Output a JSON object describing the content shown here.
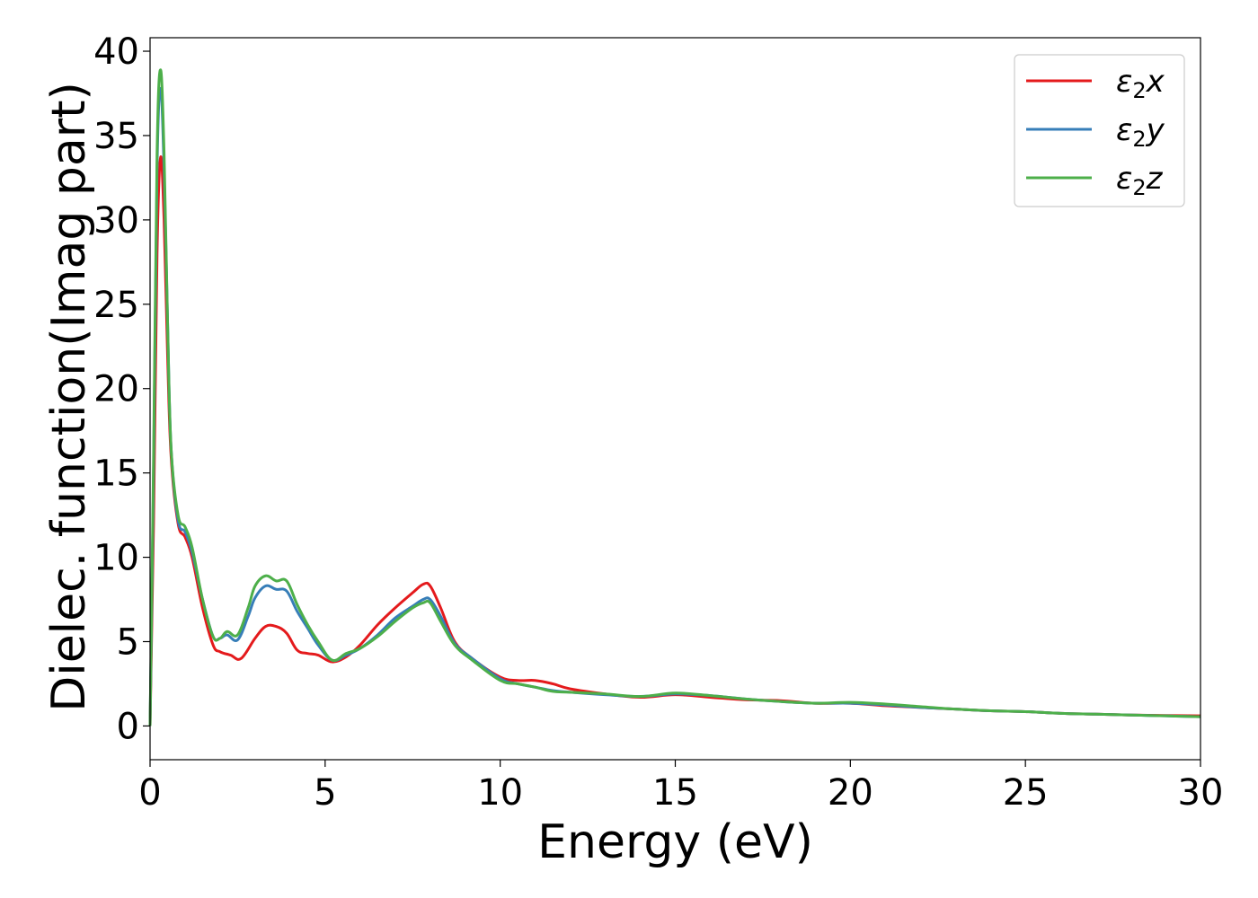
{
  "chart_data": {
    "type": "line",
    "xlabel": "Energy (eV)",
    "ylabel": "Dielec. function(Imag part)",
    "xlim": [
      0,
      30
    ],
    "ylim": [
      -2,
      40.8
    ],
    "xticks": [
      0,
      5,
      10,
      15,
      20,
      25,
      30
    ],
    "yticks": [
      0,
      5,
      10,
      15,
      20,
      25,
      30,
      35,
      40
    ],
    "grid": false,
    "legend_position": "top-right",
    "series": [
      {
        "name": "ε2x",
        "legend_base": "ε",
        "legend_sub": "2",
        "legend_suffix": "x",
        "color": "#e41a1c",
        "x": [
          0,
          0.1,
          0.2,
          0.3,
          0.4,
          0.5,
          0.6,
          0.8,
          1.0,
          1.2,
          1.5,
          1.8,
          2.0,
          2.3,
          2.6,
          3.0,
          3.3,
          3.6,
          3.9,
          4.2,
          4.5,
          4.8,
          5.2,
          5.6,
          6.0,
          6.5,
          7.0,
          7.5,
          7.8,
          8.0,
          8.3,
          8.7,
          9.2,
          10.0,
          10.5,
          11.0,
          11.5,
          12.0,
          13.0,
          14.0,
          15.0,
          16.0,
          17.0,
          18.0,
          19.0,
          20.0,
          21.0,
          22.0,
          23.0,
          24.0,
          25.0,
          26.0,
          27.0,
          28.0,
          29.0,
          30.0
        ],
        "y": [
          0,
          12,
          28,
          33.7,
          30,
          22,
          16,
          12,
          11.2,
          10,
          7,
          4.8,
          4.4,
          4.2,
          4.0,
          5.2,
          5.9,
          5.9,
          5.5,
          4.5,
          4.3,
          4.2,
          3.8,
          4.1,
          4.8,
          6.0,
          7.0,
          7.9,
          8.4,
          8.3,
          7.0,
          5.0,
          4.0,
          2.9,
          2.7,
          2.7,
          2.5,
          2.2,
          1.9,
          1.7,
          1.85,
          1.7,
          1.55,
          1.5,
          1.35,
          1.35,
          1.2,
          1.1,
          1.0,
          0.9,
          0.85,
          0.75,
          0.7,
          0.65,
          0.62,
          0.6
        ]
      },
      {
        "name": "ε2y",
        "legend_base": "ε",
        "legend_sub": "2",
        "legend_suffix": "y",
        "color": "#377eb8",
        "x": [
          0,
          0.1,
          0.2,
          0.3,
          0.4,
          0.5,
          0.6,
          0.8,
          1.0,
          1.2,
          1.5,
          1.8,
          2.0,
          2.2,
          2.5,
          2.8,
          3.0,
          3.3,
          3.6,
          3.9,
          4.2,
          4.5,
          4.8,
          5.2,
          5.6,
          6.0,
          6.5,
          7.0,
          7.5,
          7.8,
          8.0,
          8.3,
          8.7,
          9.2,
          10.0,
          10.5,
          11.0,
          11.5,
          12.0,
          13.0,
          14.0,
          15.0,
          16.0,
          17.0,
          18.0,
          19.0,
          20.0,
          21.0,
          22.0,
          23.0,
          24.0,
          25.0,
          26.0,
          27.0,
          28.0,
          29.0,
          30.0
        ],
        "y": [
          0,
          15,
          33,
          37.8,
          33,
          24,
          16.5,
          12.2,
          11.5,
          10.3,
          7.5,
          5.3,
          5.2,
          5.4,
          5.1,
          6.5,
          7.6,
          8.3,
          8.1,
          8.0,
          6.8,
          5.8,
          4.8,
          3.9,
          4.2,
          4.6,
          5.4,
          6.4,
          7.1,
          7.5,
          7.5,
          6.5,
          4.9,
          4.0,
          2.8,
          2.5,
          2.3,
          2.1,
          2.0,
          1.85,
          1.75,
          1.9,
          1.8,
          1.6,
          1.45,
          1.35,
          1.35,
          1.25,
          1.1,
          1.0,
          0.9,
          0.85,
          0.75,
          0.7,
          0.65,
          0.6,
          0.55
        ]
      },
      {
        "name": "ε2z",
        "legend_base": "ε",
        "legend_sub": "2",
        "legend_suffix": "z",
        "color": "#4daf4a",
        "x": [
          0,
          0.1,
          0.2,
          0.3,
          0.4,
          0.5,
          0.6,
          0.8,
          1.0,
          1.2,
          1.5,
          1.8,
          2.0,
          2.2,
          2.5,
          2.8,
          3.0,
          3.3,
          3.6,
          3.9,
          4.2,
          4.5,
          4.8,
          5.2,
          5.6,
          6.0,
          6.5,
          7.0,
          7.5,
          7.8,
          8.0,
          8.3,
          8.7,
          9.2,
          10.0,
          10.5,
          11.0,
          11.5,
          12.0,
          13.0,
          14.0,
          15.0,
          16.0,
          17.0,
          18.0,
          19.0,
          20.0,
          21.0,
          22.0,
          23.0,
          24.0,
          25.0,
          26.0,
          27.0,
          28.0,
          29.0,
          30.0
        ],
        "y": [
          0,
          16,
          34,
          38.9,
          34,
          24,
          16.5,
          12.5,
          11.8,
          10.6,
          7.5,
          5.3,
          5.2,
          5.6,
          5.4,
          7.0,
          8.3,
          8.9,
          8.6,
          8.6,
          7.2,
          6.0,
          5.0,
          3.9,
          4.3,
          4.6,
          5.3,
          6.2,
          7.0,
          7.3,
          7.3,
          6.2,
          4.8,
          3.9,
          2.7,
          2.5,
          2.3,
          2.05,
          2.0,
          1.9,
          1.75,
          1.95,
          1.8,
          1.6,
          1.45,
          1.35,
          1.4,
          1.3,
          1.15,
          1.0,
          0.9,
          0.85,
          0.75,
          0.7,
          0.65,
          0.6,
          0.55
        ]
      }
    ]
  }
}
